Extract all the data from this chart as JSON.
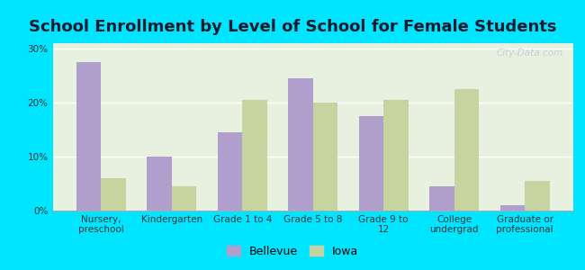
{
  "title": "School Enrollment by Level of School for Female Students",
  "categories": [
    "Nursery,\npreschool",
    "Kindergarten",
    "Grade 1 to 4",
    "Grade 5 to 8",
    "Grade 9 to\n12",
    "College\nundergrad",
    "Graduate or\nprofessional"
  ],
  "bellevue": [
    27.5,
    10.0,
    14.5,
    24.5,
    17.5,
    4.5,
    1.0
  ],
  "iowa": [
    6.0,
    4.5,
    20.5,
    20.0,
    20.5,
    22.5,
    5.5
  ],
  "bellevue_color": "#b09fcc",
  "iowa_color": "#c8d4a0",
  "background_outer": "#00e5ff",
  "background_inner": "#e8f0e0",
  "ylim": [
    0,
    31
  ],
  "yticks": [
    0,
    10,
    20,
    30
  ],
  "ytick_labels": [
    "0%",
    "10%",
    "20%",
    "30%"
  ],
  "bar_width": 0.35,
  "legend_labels": [
    "Bellevue",
    "Iowa"
  ],
  "title_fontsize": 13,
  "tick_fontsize": 7.5,
  "legend_fontsize": 9,
  "title_color": "#1a1a2e",
  "watermark_color": "#b8ccd4"
}
